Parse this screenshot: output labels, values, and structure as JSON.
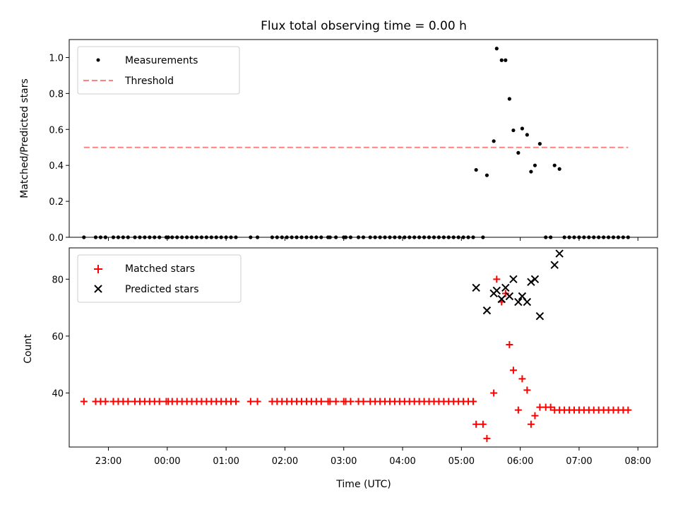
{
  "chart_data": [
    {
      "type": "scatter",
      "title": "Flux total observing time = 0.00 h",
      "ylabel": "Matched/Predicted stars",
      "xlim": [
        "22:20",
        "08:20"
      ],
      "ylim": [
        0,
        1.1
      ],
      "yticks": [
        "0.0",
        "0.2",
        "0.4",
        "0.6",
        "0.8",
        "1.0"
      ],
      "legend_position": "upper-left",
      "series": [
        {
          "name": "Measurements",
          "color": "#000000",
          "marker": "dot",
          "points": [
            [
              "22:35",
              0
            ],
            [
              "22:47",
              0
            ],
            [
              "22:52",
              0
            ],
            [
              "22:57",
              0
            ],
            [
              "23:05",
              0
            ],
            [
              "23:10",
              0
            ],
            [
              "23:15",
              0
            ],
            [
              "23:20",
              0
            ],
            [
              "23:27",
              0
            ],
            [
              "23:32",
              0
            ],
            [
              "23:37",
              0
            ],
            [
              "23:42",
              0
            ],
            [
              "23:47",
              0
            ],
            [
              "23:52",
              0
            ],
            [
              "23:59",
              0
            ],
            [
              "00:01",
              0
            ],
            [
              "00:05",
              0
            ],
            [
              "00:10",
              0
            ],
            [
              "00:15",
              0
            ],
            [
              "00:20",
              0
            ],
            [
              "00:25",
              0
            ],
            [
              "00:30",
              0
            ],
            [
              "00:35",
              0
            ],
            [
              "00:40",
              0
            ],
            [
              "00:45",
              0
            ],
            [
              "00:50",
              0
            ],
            [
              "00:55",
              0
            ],
            [
              "01:00",
              0
            ],
            [
              "01:05",
              0
            ],
            [
              "01:10",
              0
            ],
            [
              "01:25",
              0
            ],
            [
              "01:32",
              0
            ],
            [
              "01:47",
              0
            ],
            [
              "01:52",
              0
            ],
            [
              "01:57",
              0
            ],
            [
              "02:02",
              0
            ],
            [
              "02:07",
              0
            ],
            [
              "02:12",
              0
            ],
            [
              "02:17",
              0
            ],
            [
              "02:22",
              0
            ],
            [
              "02:27",
              0
            ],
            [
              "02:32",
              0
            ],
            [
              "02:37",
              0
            ],
            [
              "02:44",
              0
            ],
            [
              "02:46",
              0
            ],
            [
              "02:52",
              0
            ],
            [
              "03:00",
              0
            ],
            [
              "03:02",
              0
            ],
            [
              "03:07",
              0
            ],
            [
              "03:15",
              0
            ],
            [
              "03:20",
              0
            ],
            [
              "03:27",
              0
            ],
            [
              "03:32",
              0
            ],
            [
              "03:37",
              0
            ],
            [
              "03:42",
              0
            ],
            [
              "03:47",
              0
            ],
            [
              "03:52",
              0
            ],
            [
              "03:57",
              0
            ],
            [
              "04:02",
              0
            ],
            [
              "04:07",
              0
            ],
            [
              "04:12",
              0
            ],
            [
              "04:17",
              0
            ],
            [
              "04:22",
              0
            ],
            [
              "04:27",
              0
            ],
            [
              "04:32",
              0
            ],
            [
              "04:37",
              0
            ],
            [
              "04:42",
              0
            ],
            [
              "04:47",
              0
            ],
            [
              "04:52",
              0
            ],
            [
              "04:57",
              0
            ],
            [
              "05:02",
              0
            ],
            [
              "05:07",
              0
            ],
            [
              "05:12",
              0
            ],
            [
              "05:15",
              0.375
            ],
            [
              "05:22",
              0
            ],
            [
              "05:26",
              0.345
            ],
            [
              "05:33",
              0.535
            ],
            [
              "05:36",
              1.05
            ],
            [
              "05:41",
              0.985
            ],
            [
              "05:45",
              0.985
            ],
            [
              "05:49",
              0.77
            ],
            [
              "05:53",
              0.595
            ],
            [
              "05:58",
              0.47
            ],
            [
              "06:02",
              0.605
            ],
            [
              "06:07",
              0.57
            ],
            [
              "06:11",
              0.365
            ],
            [
              "06:15",
              0.4
            ],
            [
              "06:20",
              0.52
            ],
            [
              "06:26",
              0
            ],
            [
              "06:31",
              0
            ],
            [
              "06:35",
              0.4
            ],
            [
              "06:40",
              0.38
            ],
            [
              "06:45",
              0
            ],
            [
              "06:50",
              0
            ],
            [
              "06:55",
              0
            ],
            [
              "07:00",
              0
            ],
            [
              "07:05",
              0
            ],
            [
              "07:10",
              0
            ],
            [
              "07:15",
              0
            ],
            [
              "07:20",
              0
            ],
            [
              "07:25",
              0
            ],
            [
              "07:30",
              0
            ],
            [
              "07:35",
              0
            ],
            [
              "07:40",
              0
            ],
            [
              "07:45",
              0
            ],
            [
              "07:50",
              0
            ]
          ]
        },
        {
          "name": "Threshold",
          "color": "#ff8080",
          "marker": "dashed-line",
          "points": [
            [
              "22:35",
              0.5
            ],
            [
              "07:50",
              0.5
            ]
          ]
        }
      ]
    },
    {
      "type": "scatter",
      "xlabel": "Time (UTC)",
      "ylabel": "Count",
      "xlim": [
        "22:20",
        "08:20"
      ],
      "ylim": [
        21,
        91
      ],
      "xticks": [
        "23:00",
        "00:00",
        "01:00",
        "02:00",
        "03:00",
        "04:00",
        "05:00",
        "06:00",
        "07:00",
        "08:00"
      ],
      "yticks": [
        "40",
        "60",
        "80"
      ],
      "legend_position": "upper-left",
      "series": [
        {
          "name": "Matched stars",
          "color": "#ff0000",
          "marker": "plus",
          "points": [
            [
              "22:35",
              37
            ],
            [
              "22:47",
              37
            ],
            [
              "22:52",
              37
            ],
            [
              "22:57",
              37
            ],
            [
              "23:05",
              37
            ],
            [
              "23:10",
              37
            ],
            [
              "23:15",
              37
            ],
            [
              "23:20",
              37
            ],
            [
              "23:27",
              37
            ],
            [
              "23:32",
              37
            ],
            [
              "23:37",
              37
            ],
            [
              "23:42",
              37
            ],
            [
              "23:47",
              37
            ],
            [
              "23:52",
              37
            ],
            [
              "23:59",
              37
            ],
            [
              "00:01",
              37
            ],
            [
              "00:05",
              37
            ],
            [
              "00:10",
              37
            ],
            [
              "00:15",
              37
            ],
            [
              "00:20",
              37
            ],
            [
              "00:25",
              37
            ],
            [
              "00:30",
              37
            ],
            [
              "00:35",
              37
            ],
            [
              "00:40",
              37
            ],
            [
              "00:45",
              37
            ],
            [
              "00:50",
              37
            ],
            [
              "00:55",
              37
            ],
            [
              "01:00",
              37
            ],
            [
              "01:05",
              37
            ],
            [
              "01:10",
              37
            ],
            [
              "01:25",
              37
            ],
            [
              "01:32",
              37
            ],
            [
              "01:47",
              37
            ],
            [
              "01:52",
              37
            ],
            [
              "01:57",
              37
            ],
            [
              "02:02",
              37
            ],
            [
              "02:07",
              37
            ],
            [
              "02:12",
              37
            ],
            [
              "02:17",
              37
            ],
            [
              "02:22",
              37
            ],
            [
              "02:27",
              37
            ],
            [
              "02:32",
              37
            ],
            [
              "02:37",
              37
            ],
            [
              "02:44",
              37
            ],
            [
              "02:46",
              37
            ],
            [
              "02:52",
              37
            ],
            [
              "03:00",
              37
            ],
            [
              "03:02",
              37
            ],
            [
              "03:07",
              37
            ],
            [
              "03:15",
              37
            ],
            [
              "03:20",
              37
            ],
            [
              "03:27",
              37
            ],
            [
              "03:32",
              37
            ],
            [
              "03:37",
              37
            ],
            [
              "03:42",
              37
            ],
            [
              "03:47",
              37
            ],
            [
              "03:52",
              37
            ],
            [
              "03:57",
              37
            ],
            [
              "04:02",
              37
            ],
            [
              "04:07",
              37
            ],
            [
              "04:12",
              37
            ],
            [
              "04:17",
              37
            ],
            [
              "04:22",
              37
            ],
            [
              "04:27",
              37
            ],
            [
              "04:32",
              37
            ],
            [
              "04:37",
              37
            ],
            [
              "04:42",
              37
            ],
            [
              "04:47",
              37
            ],
            [
              "04:52",
              37
            ],
            [
              "04:57",
              37
            ],
            [
              "05:02",
              37
            ],
            [
              "05:07",
              37
            ],
            [
              "05:12",
              37
            ],
            [
              "05:15",
              29
            ],
            [
              "05:22",
              29
            ],
            [
              "05:26",
              24
            ],
            [
              "05:33",
              40
            ],
            [
              "05:36",
              80
            ],
            [
              "05:41",
              72
            ],
            [
              "05:45",
              75
            ],
            [
              "05:49",
              57
            ],
            [
              "05:53",
              48
            ],
            [
              "05:58",
              34
            ],
            [
              "06:02",
              45
            ],
            [
              "06:07",
              41
            ],
            [
              "06:11",
              29
            ],
            [
              "06:15",
              32
            ],
            [
              "06:20",
              35
            ],
            [
              "06:26",
              35
            ],
            [
              "06:31",
              35
            ],
            [
              "06:35",
              34
            ],
            [
              "06:40",
              34
            ],
            [
              "06:45",
              34
            ],
            [
              "06:50",
              34
            ],
            [
              "06:55",
              34
            ],
            [
              "07:00",
              34
            ],
            [
              "07:05",
              34
            ],
            [
              "07:10",
              34
            ],
            [
              "07:15",
              34
            ],
            [
              "07:20",
              34
            ],
            [
              "07:25",
              34
            ],
            [
              "07:30",
              34
            ],
            [
              "07:35",
              34
            ],
            [
              "07:40",
              34
            ],
            [
              "07:45",
              34
            ],
            [
              "07:50",
              34
            ]
          ]
        },
        {
          "name": "Predicted stars",
          "color": "#000000",
          "marker": "x",
          "points": [
            [
              "05:15",
              77
            ],
            [
              "05:26",
              69
            ],
            [
              "05:33",
              75
            ],
            [
              "05:36",
              76
            ],
            [
              "05:41",
              73
            ],
            [
              "05:45",
              77
            ],
            [
              "05:49",
              74
            ],
            [
              "05:53",
              80
            ],
            [
              "05:58",
              72
            ],
            [
              "06:02",
              74
            ],
            [
              "06:07",
              72
            ],
            [
              "06:11",
              79
            ],
            [
              "06:15",
              80
            ],
            [
              "06:20",
              67
            ],
            [
              "06:35",
              85
            ],
            [
              "06:40",
              89
            ]
          ]
        }
      ]
    }
  ]
}
